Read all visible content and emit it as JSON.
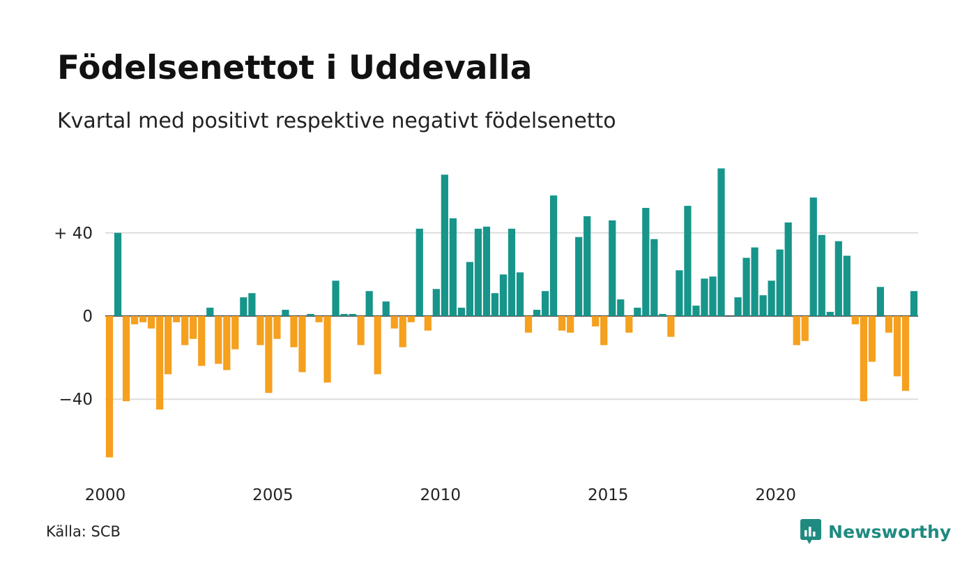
{
  "colors": {
    "positive": "#17958a",
    "negative": "#f5a01e",
    "grid": "#dddddd",
    "brand": "#1f8a80"
  },
  "chart_data": {
    "type": "bar",
    "title": "Födelsenettot i Uddevalla",
    "subtitle": "Kvartal med positivt respektive negativt födelsenetto",
    "x_tick_labels": [
      "2000",
      "2005",
      "2010",
      "2015",
      "2020"
    ],
    "y_tick_labels": [
      "+ 40",
      "0",
      "−40"
    ],
    "y_ticks": [
      40,
      0,
      -40
    ],
    "ylim": [
      -70,
      72
    ],
    "grid": true,
    "start_year": 2000,
    "values": [
      -68,
      40,
      -41,
      -4,
      -3,
      -6,
      -45,
      -28,
      -3,
      -14,
      -11,
      -24,
      4,
      -23,
      -26,
      -16,
      9,
      11,
      -14,
      -37,
      -11,
      3,
      -15,
      -27,
      1,
      -3,
      -32,
      17,
      1,
      1,
      -14,
      12,
      -28,
      7,
      -6,
      -15,
      -3,
      42,
      -7,
      13,
      68,
      47,
      4,
      26,
      42,
      43,
      11,
      20,
      42,
      21,
      -8,
      3,
      12,
      58,
      -7,
      -8,
      38,
      48,
      -5,
      -14,
      46,
      8,
      -8,
      4,
      52,
      37,
      1,
      -10,
      22,
      53,
      5,
      18,
      19,
      71,
      0,
      9,
      28,
      33,
      10,
      17,
      32,
      45,
      -14,
      -12,
      57,
      39,
      2,
      36,
      29,
      -4,
      -41,
      -22,
      14,
      -8,
      -29,
      -36,
      12
    ]
  },
  "source": "Källa: SCB",
  "logo": {
    "text": "Newsworthy",
    "icon": "newsworthy-chat-bars-icon"
  }
}
